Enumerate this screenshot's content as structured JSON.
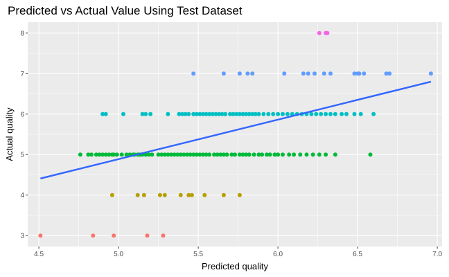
{
  "chart_data": {
    "type": "scatter",
    "title": "Predicted vs Actual Value Using Test Dataset",
    "xlabel": "Predicted quality",
    "ylabel": "Actual quality",
    "xlim": [
      4.43,
      7.03
    ],
    "ylim": [
      2.73,
      8.27
    ],
    "x_ticks": [
      4.5,
      5.0,
      5.5,
      6.0,
      6.5,
      7.0
    ],
    "x_tick_labels": [
      "4.5",
      "5.0",
      "5.5",
      "6.0",
      "6.5",
      "7.0"
    ],
    "y_ticks": [
      3,
      4,
      5,
      6,
      7,
      8
    ],
    "y_tick_labels": [
      "3",
      "4",
      "5",
      "6",
      "7",
      "8"
    ],
    "grid": true,
    "legend": "none",
    "background": "#ebebeb",
    "grid_color": "#ffffff",
    "colors": {
      "3": "#f8766d",
      "4": "#b79f00",
      "5": "#00ba38",
      "6": "#00bfc4",
      "7": "#619cff",
      "8": "#f564e3"
    },
    "trend_line": {
      "x": [
        4.51,
        6.96
      ],
      "y": [
        4.41,
        6.8
      ],
      "color": "#3366ff"
    },
    "series": [
      {
        "y": 3,
        "x": [
          4.51,
          4.84,
          4.97,
          5.18,
          5.28
        ]
      },
      {
        "y": 4,
        "x": [
          4.96,
          5.12,
          5.16,
          5.26,
          5.29,
          5.39,
          5.44,
          5.46,
          5.54,
          5.66,
          5.76
        ]
      },
      {
        "y": 5,
        "x": [
          4.76,
          4.81,
          4.83,
          4.86,
          4.88,
          4.9,
          4.92,
          4.94,
          4.96,
          4.97,
          4.99,
          5.02,
          5.05,
          5.07,
          5.09,
          5.1,
          5.12,
          5.13,
          5.14,
          5.15,
          5.17,
          5.19,
          5.21,
          5.25,
          5.27,
          5.29,
          5.31,
          5.33,
          5.35,
          5.37,
          5.39,
          5.41,
          5.43,
          5.45,
          5.47,
          5.49,
          5.51,
          5.53,
          5.55,
          5.57,
          5.6,
          5.62,
          5.64,
          5.66,
          5.68,
          5.71,
          5.73,
          5.76,
          5.78,
          5.8,
          5.82,
          5.85,
          5.88,
          5.9,
          5.93,
          5.95,
          5.98,
          6.0,
          6.03,
          6.07,
          6.1,
          6.14,
          6.18,
          6.22,
          6.26,
          6.3,
          6.36,
          6.58
        ]
      },
      {
        "y": 6,
        "x": [
          4.9,
          4.92,
          5.03,
          5.15,
          5.17,
          5.2,
          5.31,
          5.38,
          5.4,
          5.42,
          5.44,
          5.47,
          5.49,
          5.51,
          5.53,
          5.55,
          5.57,
          5.59,
          5.61,
          5.63,
          5.65,
          5.67,
          5.7,
          5.72,
          5.74,
          5.76,
          5.78,
          5.8,
          5.82,
          5.84,
          5.86,
          5.88,
          5.91,
          5.94,
          5.97,
          6.0,
          6.03,
          6.06,
          6.09,
          6.12,
          6.15,
          6.18,
          6.21,
          6.24,
          6.27,
          6.3,
          6.33,
          6.36,
          6.4,
          6.43,
          6.48,
          6.52,
          6.6
        ]
      },
      {
        "y": 7,
        "x": [
          5.47,
          5.66,
          5.76,
          5.81,
          5.84,
          6.04,
          6.16,
          6.19,
          6.23,
          6.29,
          6.33,
          6.48,
          6.5,
          6.51,
          6.54,
          6.68,
          6.7,
          6.96
        ]
      },
      {
        "y": 8,
        "x": [
          6.26,
          6.3,
          6.31
        ]
      }
    ]
  }
}
